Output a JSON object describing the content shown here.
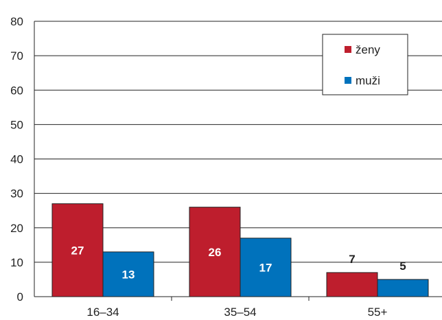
{
  "chart_data": {
    "type": "bar",
    "title": "",
    "xlabel": "",
    "ylabel": "",
    "categories": [
      "16–34",
      "35–54",
      "55+"
    ],
    "series": [
      {
        "name": "ženy",
        "values": [
          27,
          26,
          7
        ],
        "color": "#be1e2d"
      },
      {
        "name": "muži",
        "values": [
          13,
          17,
          5
        ],
        "color": "#0072bc"
      }
    ],
    "data_labels": [
      [
        "27",
        "26",
        "7"
      ],
      [
        "13",
        "17",
        "5"
      ]
    ],
    "ylim": [
      0,
      80
    ],
    "yticks": [
      0,
      10,
      20,
      30,
      40,
      50,
      60,
      70,
      80
    ],
    "ytick_labels": [
      "0",
      "10",
      "20",
      "30",
      "40",
      "50",
      "60",
      "70",
      "80"
    ],
    "grid": true,
    "legend_position": "top-right"
  }
}
